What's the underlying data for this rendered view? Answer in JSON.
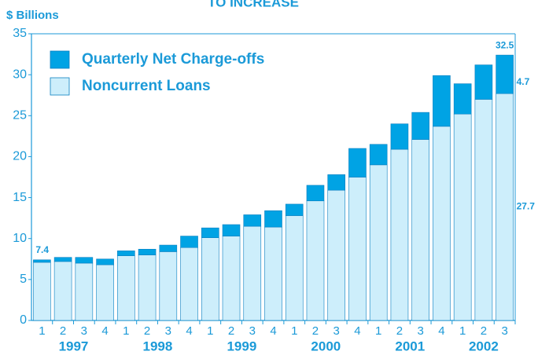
{
  "chart_data": {
    "type": "stacked_bar",
    "title": "TO INCREASE",
    "ylabel": "$ Billions",
    "categories": [
      "1",
      "2",
      "3",
      "4",
      "1",
      "2",
      "3",
      "4",
      "1",
      "2",
      "3",
      "4",
      "1",
      "2",
      "3",
      "4",
      "1",
      "2",
      "3",
      "4",
      "1",
      "2",
      "3"
    ],
    "groups": [
      {
        "label": "1997",
        "size": 4
      },
      {
        "label": "1998",
        "size": 4
      },
      {
        "label": "1999",
        "size": 4
      },
      {
        "label": "2000",
        "size": 4
      },
      {
        "label": "2001",
        "size": 4
      },
      {
        "label": "2002",
        "size": 3
      }
    ],
    "series": [
      {
        "name": "Noncurrent Loans",
        "color": "#cdeefb",
        "values": [
          7.1,
          7.2,
          7.0,
          6.8,
          7.9,
          8.0,
          8.4,
          8.9,
          10.1,
          10.3,
          11.5,
          11.4,
          12.8,
          14.6,
          15.9,
          17.5,
          19.0,
          20.9,
          22.1,
          23.7,
          25.2,
          27.0,
          27.7
        ]
      },
      {
        "name": "Quarterly Net Charge-offs",
        "color": "#00a3e4",
        "values": [
          0.3,
          0.5,
          0.7,
          0.7,
          0.6,
          0.7,
          0.8,
          1.4,
          1.2,
          1.4,
          1.4,
          2.0,
          1.4,
          1.9,
          1.9,
          3.5,
          2.5,
          3.1,
          3.3,
          6.2,
          3.7,
          4.2,
          4.7
        ]
      }
    ],
    "annotations": [
      {
        "text": "7.4",
        "index": 0
      },
      {
        "text": "32.5",
        "index": 22
      }
    ],
    "ylim": [
      0,
      35
    ],
    "yticks": [
      0,
      5,
      10,
      15,
      20,
      25,
      30,
      35
    ],
    "legend": "upper left"
  }
}
